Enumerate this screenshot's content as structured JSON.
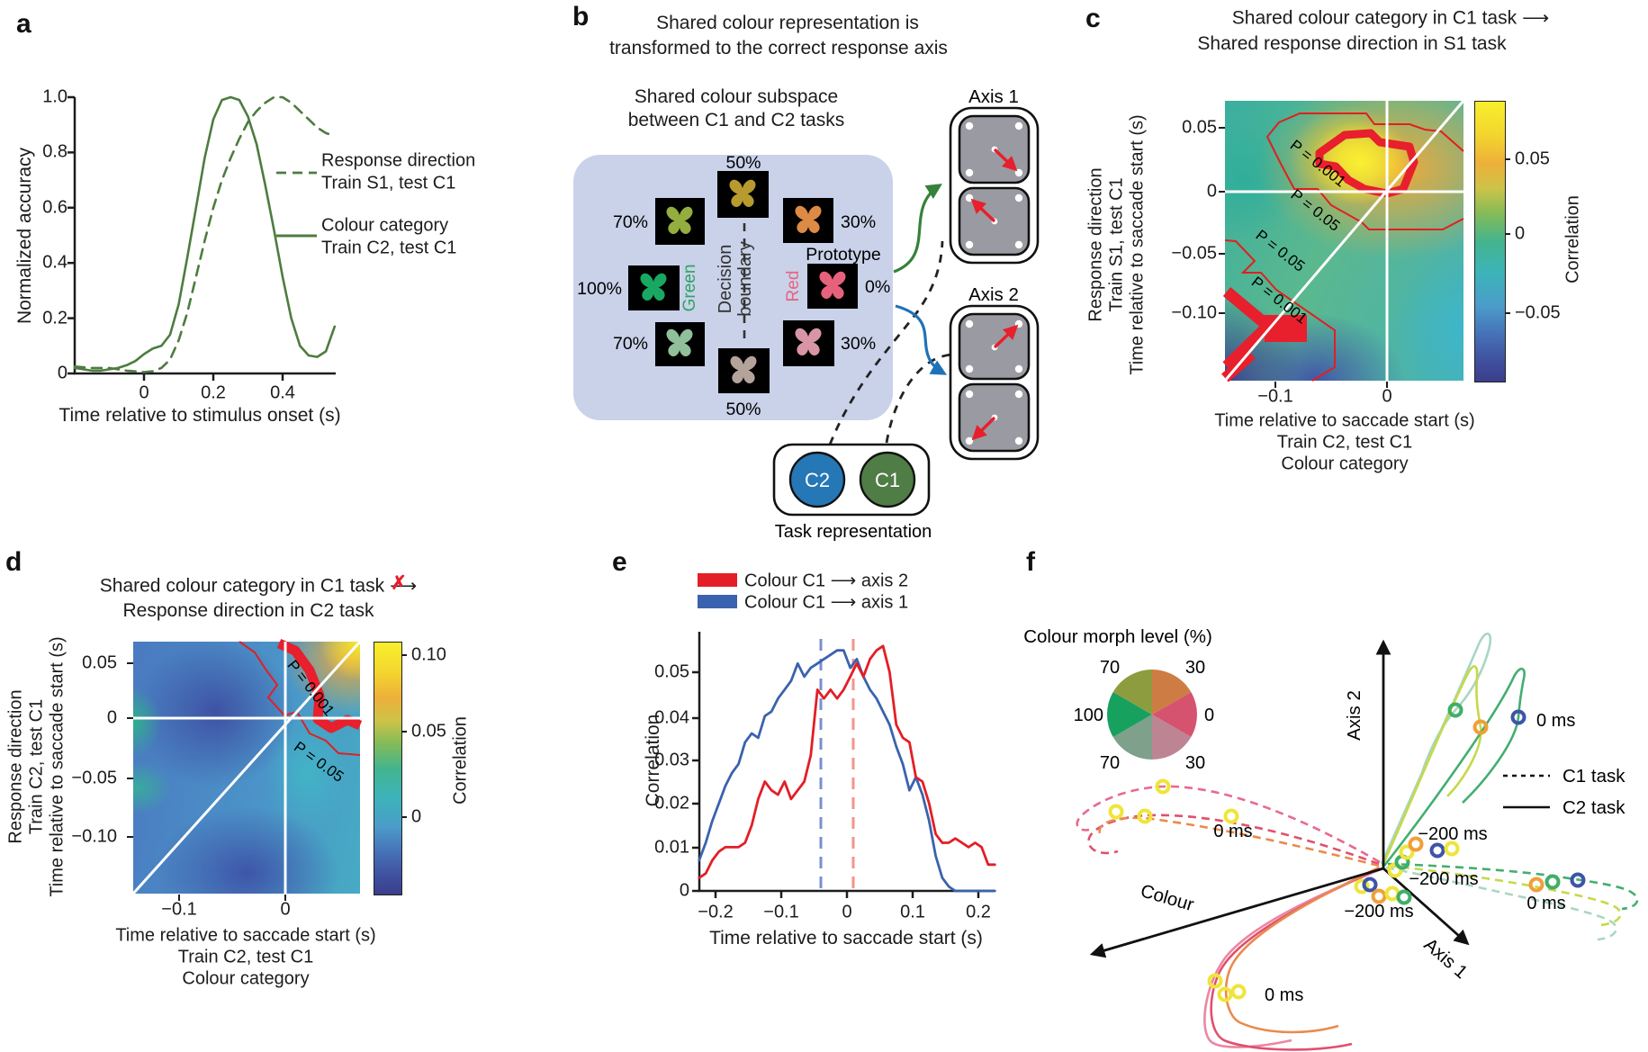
{
  "panel_a": {
    "label": "a",
    "ylabel": "Normalized accuracy",
    "xlabel": "Time relative to stimulus onset (s)",
    "y_ticks": [
      "1.0",
      "0.8",
      "0.6",
      "0.4",
      "0.2",
      "0"
    ],
    "x_ticks": [
      "0",
      "0.2",
      "0.4"
    ],
    "legend": {
      "dashed_line1": "Response direction",
      "dashed_line2": "Train S1, test C1",
      "solid_line1": "Colour category",
      "solid_line2": "Train C2, test C1"
    }
  },
  "panel_b": {
    "label": "b",
    "title1": "Shared colour representation is",
    "title2": "transformed to the correct response axis",
    "subtitle1": "Shared colour subspace",
    "subtitle2": "between C1 and C2 tasks",
    "pct_top": "50%",
    "pct_ul": "70%",
    "pct_ur": "30%",
    "pct_l": "100%",
    "pct_r": "0%",
    "pct_ll": "70%",
    "pct_lr": "30%",
    "pct_bot": "50%",
    "prototype": "Prototype",
    "green_label": "Green",
    "red_label": "Red",
    "decision1": "Decision",
    "decision2": "boundary",
    "axis1": "Axis 1",
    "axis2": "Axis 2",
    "c2": "C2",
    "c1": "C1",
    "task": "Task representation"
  },
  "panel_c": {
    "label": "c",
    "title1": "Shared colour category in C1 task",
    "arrow": "⟶",
    "title2": "Shared response direction in S1 task",
    "ylab1": "Response direction",
    "ylab2": "Train S1, test C1",
    "ylab3": "Time relative to saccade start (s)",
    "xlab1": "Time relative to saccade start (s)",
    "xlab2": "Train C2, test C1",
    "xlab3": "Colour category",
    "y_ticks": [
      "0.05",
      "0",
      "−0.05",
      "−0.10"
    ],
    "x_ticks": [
      "−0.1",
      "0"
    ],
    "cb_ticks": [
      "0.05",
      "0",
      "−0.05"
    ],
    "cb_label": "Correlation",
    "p1": "P = 0.001",
    "p2": "P = 0.05",
    "p3": "P = 0.05",
    "p4": "P = 0.001"
  },
  "panel_d": {
    "label": "d",
    "title1": "Shared colour category in C1 task",
    "arrow": "⟶",
    "x_mark": "✗",
    "title2": "Response direction in C2 task",
    "ylab1": "Response direction",
    "ylab2": "Train C2, test C1",
    "ylab3": "Time relative to saccade start (s)",
    "xlab1": "Time relative to saccade start (s)",
    "xlab2": "Train C2, test C1",
    "xlab3": "Colour category",
    "y_ticks": [
      "0.05",
      "0",
      "−0.05",
      "−0.10"
    ],
    "x_ticks": [
      "−0.1",
      "0"
    ],
    "cb_ticks": [
      "0.10",
      "0.05",
      "0"
    ],
    "cb_label": "Correlation",
    "p1": "P = 0.001",
    "p2": "P = 0.05"
  },
  "panel_e": {
    "label": "e",
    "ylabel": "Correlation",
    "xlabel": "Time relative to saccade start (s)",
    "y_ticks": [
      "0.05",
      "0.04",
      "0.03",
      "0.02",
      "0.01",
      "0"
    ],
    "x_ticks": [
      "−0.2",
      "−0.1",
      "0",
      "0.1",
      "0.2"
    ],
    "legend": [
      {
        "name": "Colour C1",
        "arrow": "⟶",
        "target": "axis 2",
        "color": "#e31e26"
      },
      {
        "name": "Colour C1",
        "arrow": "⟶",
        "target": "axis 1",
        "color": "#3a62ae"
      }
    ]
  },
  "panel_f": {
    "label": "f",
    "pie_title": "Colour morph level (%)",
    "pie_labels": [
      "70",
      "30",
      "100",
      "0",
      "70",
      "30"
    ],
    "pie_colors": [
      "#cd7d44",
      "#d6536f",
      "#bd8494",
      "#7fa08b",
      "#18a05f",
      "#8d9c3f"
    ],
    "axis2": "Axis 2",
    "axis1": "Axis 1",
    "colour_axis": "Colour",
    "legend_c1": "C1 task",
    "legend_c2": "C2 task",
    "t0_topright": "0 ms",
    "t0_right": "0 ms",
    "t0_left": "0 ms",
    "t0_bottom": "0 ms",
    "tm_top": "−200 ms",
    "tm_mid": "−200 ms",
    "tm_bottom": "−200 ms"
  },
  "chart_data": [
    {
      "type": "line",
      "panel": "a",
      "xlabel": "Time relative to stimulus onset (s)",
      "ylabel": "Normalized accuracy",
      "xlim": [
        -0.2,
        0.55
      ],
      "ylim": [
        0,
        1.0
      ],
      "x_ticks": [
        0,
        0.2,
        0.4
      ],
      "y_ticks": [
        0,
        0.2,
        0.4,
        0.6,
        0.8,
        1.0
      ],
      "series": [
        {
          "name": "Colour category Train C2, test C1",
          "style": "solid",
          "color": "#4d7c40",
          "width": 2.6,
          "x": [
            -0.2,
            -0.175,
            -0.15,
            -0.125,
            -0.1,
            -0.075,
            -0.05,
            -0.025,
            0,
            0.025,
            0.05,
            0.075,
            0.1,
            0.125,
            0.15,
            0.175,
            0.2,
            0.225,
            0.25,
            0.275,
            0.3,
            0.325,
            0.35,
            0.375,
            0.4,
            0.425,
            0.45,
            0.475,
            0.5,
            0.525,
            0.55
          ],
          "y": [
            0.02,
            0.015,
            0.01,
            0.01,
            0.015,
            0.02,
            0.03,
            0.045,
            0.07,
            0.09,
            0.1,
            0.14,
            0.25,
            0.42,
            0.6,
            0.78,
            0.92,
            0.99,
            1.0,
            0.99,
            0.93,
            0.83,
            0.68,
            0.52,
            0.35,
            0.2,
            0.1,
            0.065,
            0.06,
            0.08,
            0.17
          ]
        },
        {
          "name": "Response direction Train S1, test C1",
          "style": "dashed",
          "color": "#4d7c40",
          "width": 2.6,
          "x": [
            -0.2,
            -0.15,
            -0.1,
            -0.05,
            0,
            0.025,
            0.05,
            0.075,
            0.1,
            0.125,
            0.15,
            0.175,
            0.2,
            0.225,
            0.25,
            0.275,
            0.3,
            0.325,
            0.35,
            0.375,
            0.4,
            0.425,
            0.45,
            0.475,
            0.5,
            0.525,
            0.55
          ],
          "y": [
            0.025,
            0.02,
            0.02,
            0.01,
            0.005,
            0.008,
            0.02,
            0.05,
            0.12,
            0.22,
            0.35,
            0.48,
            0.6,
            0.7,
            0.78,
            0.85,
            0.91,
            0.95,
            0.98,
            1.0,
            1.0,
            0.98,
            0.95,
            0.92,
            0.89,
            0.87,
            0.86
          ]
        }
      ]
    },
    {
      "type": "heatmap",
      "panel": "c",
      "title": "Shared colour category in C1 task → Shared response direction in S1 task",
      "xlabel": "Time relative to saccade start (s), Train C2, test C1, Colour category",
      "ylabel": "Response direction, Train S1, test C1, Time relative to saccade start (s)",
      "xlim": [
        -0.145,
        0.07
      ],
      "ylim": [
        -0.155,
        0.072
      ],
      "x_ticks": [
        -0.1,
        0
      ],
      "y_ticks": [
        0.05,
        0,
        -0.05,
        -0.1
      ],
      "colorbar": {
        "label": "Correlation",
        "ticks": [
          0.05,
          0,
          -0.05
        ]
      },
      "clusters": [
        {
          "p": "P = 0.001",
          "sign": "positive",
          "location": "around x −0.05..0.02, y 0..0.05, peak correlation ≈ 0.08"
        },
        {
          "p": "P = 0.001",
          "sign": "negative",
          "location": "bottom-left, x < −0.08, y < −0.08, correlation ≈ −0.07"
        }
      ]
    },
    {
      "type": "heatmap",
      "panel": "d",
      "title": "Shared colour category in C1 task ✗→ Response direction in C2 task",
      "xlabel": "Time relative to saccade start (s), Train C2, test C1, Colour category",
      "ylabel": "Response direction, Train C2, test C1, Time relative to saccade start (s)",
      "xlim": [
        -0.143,
        0.07
      ],
      "ylim": [
        -0.155,
        0.072
      ],
      "x_ticks": [
        -0.1,
        0
      ],
      "y_ticks": [
        0.05,
        0,
        -0.05,
        -0.1
      ],
      "colorbar": {
        "label": "Correlation",
        "ticks": [
          0.1,
          0.05,
          0
        ]
      },
      "clusters": [
        {
          "p": "P = 0.001",
          "sign": "positive",
          "location": "top-right corner x > 0, y > 0, peak correlation ≈ 0.10"
        }
      ]
    },
    {
      "type": "line",
      "panel": "e",
      "xlabel": "Time relative to saccade start (s)",
      "ylabel": "Correlation",
      "xlim": [
        -0.225,
        0.225
      ],
      "ylim": [
        0,
        0.06
      ],
      "x_ticks": [
        -0.2,
        -0.1,
        0,
        0.1,
        0.2
      ],
      "y_ticks": [
        0,
        0.01,
        0.02,
        0.03,
        0.04,
        0.05
      ],
      "vlines": [
        {
          "x": -0.04,
          "color": "#7a8fd0",
          "style": "dashed"
        },
        {
          "x": 0.01,
          "color": "#f2958a",
          "style": "dashed"
        }
      ],
      "series": [
        {
          "name": "Colour C1 → axis 1",
          "style": "solid",
          "color": "#3a62ae",
          "width": 2.8,
          "x": [
            -0.225,
            -0.215,
            -0.205,
            -0.195,
            -0.185,
            -0.175,
            -0.165,
            -0.155,
            -0.145,
            -0.135,
            -0.125,
            -0.115,
            -0.105,
            -0.095,
            -0.085,
            -0.075,
            -0.065,
            -0.055,
            -0.045,
            -0.035,
            -0.025,
            -0.015,
            -0.005,
            0.005,
            0.015,
            0.025,
            0.035,
            0.045,
            0.055,
            0.065,
            0.075,
            0.085,
            0.095,
            0.105,
            0.115,
            0.125,
            0.135,
            0.145,
            0.155,
            0.165,
            0.175,
            0.185,
            0.195,
            0.205,
            0.215,
            0.225
          ],
          "y": [
            0.007,
            0.011,
            0.016,
            0.02,
            0.024,
            0.027,
            0.029,
            0.034,
            0.036,
            0.035,
            0.04,
            0.041,
            0.044,
            0.046,
            0.048,
            0.052,
            0.049,
            0.051,
            0.052,
            0.053,
            0.054,
            0.055,
            0.055,
            0.051,
            0.053,
            0.049,
            0.046,
            0.044,
            0.041,
            0.038,
            0.033,
            0.029,
            0.023,
            0.026,
            0.022,
            0.016,
            0.008,
            0.003,
            0.001,
            0,
            0,
            0,
            0,
            0,
            0,
            0
          ]
        },
        {
          "name": "Colour C1 → axis 2",
          "style": "solid",
          "color": "#e31e26",
          "width": 2.8,
          "x": [
            -0.225,
            -0.215,
            -0.205,
            -0.195,
            -0.185,
            -0.175,
            -0.165,
            -0.155,
            -0.145,
            -0.135,
            -0.125,
            -0.115,
            -0.105,
            -0.095,
            -0.085,
            -0.075,
            -0.065,
            -0.055,
            -0.045,
            -0.035,
            -0.025,
            -0.015,
            -0.005,
            0.005,
            0.015,
            0.025,
            0.035,
            0.045,
            0.055,
            0.065,
            0.075,
            0.085,
            0.095,
            0.105,
            0.115,
            0.125,
            0.135,
            0.145,
            0.155,
            0.165,
            0.175,
            0.185,
            0.195,
            0.205,
            0.215,
            0.225
          ],
          "y": [
            0.003,
            0.004,
            0.007,
            0.009,
            0.01,
            0.01,
            0.01,
            0.011,
            0.015,
            0.021,
            0.025,
            0.023,
            0.022,
            0.025,
            0.021,
            0.023,
            0.025,
            0.031,
            0.046,
            0.044,
            0.046,
            0.044,
            0.046,
            0.049,
            0.052,
            0.049,
            0.053,
            0.055,
            0.056,
            0.05,
            0.038,
            0.035,
            0.034,
            0.026,
            0.025,
            0.02,
            0.013,
            0.011,
            0.011,
            0.012,
            0.011,
            0.01,
            0.011,
            0.01,
            0.006,
            0.006
          ]
        }
      ]
    },
    {
      "type": "trajectory3d",
      "panel": "f",
      "axes": [
        "Colour",
        "Axis 1",
        "Axis 2"
      ],
      "groups": [
        {
          "name": "C1 task",
          "style": "dashed"
        },
        {
          "name": "C2 task",
          "style": "solid"
        }
      ],
      "time_markers": [
        "−200 ms",
        "0 ms"
      ],
      "morph_levels_percent": [
        100,
        70,
        50,
        30,
        0
      ],
      "description": "Population trajectories: green-category C2 trajectories rise along Axis 2; red-category C2 trajectories extend along negative Axis 2 / Colour; C1 (dashed) trajectories extend along Axis 1 and Colour axes."
    }
  ]
}
